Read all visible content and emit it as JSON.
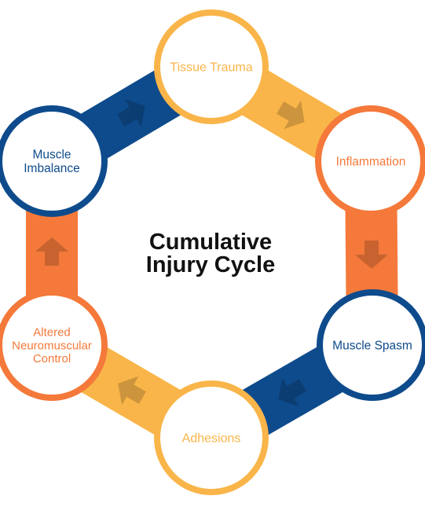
{
  "title": {
    "lines": [
      "Cumulative",
      "Injury Cycle"
    ]
  },
  "colors": {
    "orange": "#F4793A",
    "yellow": "#F9B549",
    "blue": "#0E4B8C",
    "title": "#111111",
    "background": "#FFFFFF"
  },
  "nodes": [
    {
      "id": "tissue-trauma",
      "lines": [
        "Tissue Trauma"
      ],
      "color": "yellow"
    },
    {
      "id": "inflammation",
      "lines": [
        "Inflammation"
      ],
      "color": "orange"
    },
    {
      "id": "muscle-spasm",
      "lines": [
        "Muscle Spasm"
      ],
      "color": "blue"
    },
    {
      "id": "adhesions",
      "lines": [
        "Adhesions"
      ],
      "color": "yellow"
    },
    {
      "id": "altered-neuromuscular-control",
      "lines": [
        "Altered",
        "Neuromuscular",
        "Control"
      ],
      "color": "orange"
    },
    {
      "id": "muscle-imbalance",
      "lines": [
        "Muscle",
        "Imbalance"
      ],
      "color": "blue"
    }
  ],
  "connectors": [
    {
      "from": "muscle-imbalance",
      "to": "tissue-trauma",
      "color": "blue"
    },
    {
      "from": "tissue-trauma",
      "to": "inflammation",
      "color": "yellow"
    },
    {
      "from": "inflammation",
      "to": "muscle-spasm",
      "color": "orange"
    },
    {
      "from": "muscle-spasm",
      "to": "adhesions",
      "color": "blue"
    },
    {
      "from": "adhesions",
      "to": "altered-neuromuscular-control",
      "color": "yellow"
    },
    {
      "from": "altered-neuromuscular-control",
      "to": "muscle-imbalance",
      "color": "orange"
    }
  ]
}
